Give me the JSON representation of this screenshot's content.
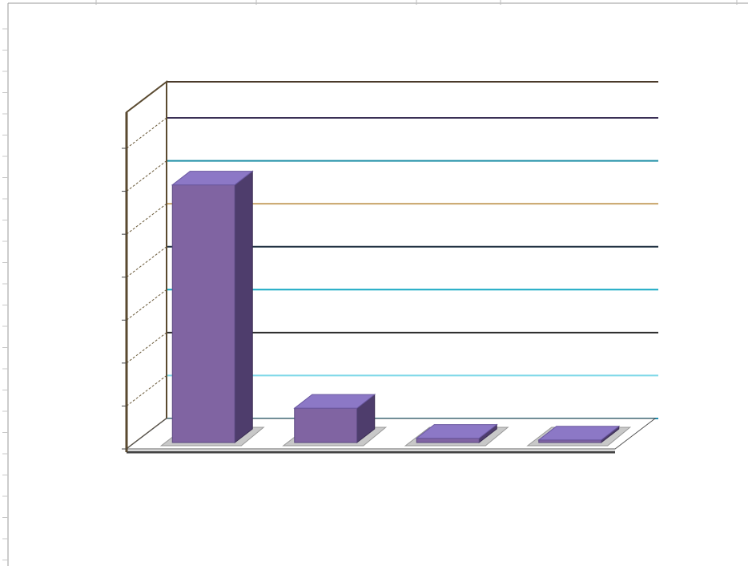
{
  "chart_data": {
    "type": "bar",
    "title": "",
    "xlabel": "",
    "ylabel": "",
    "categories": [
      "",
      "",
      "",
      ""
    ],
    "series": [
      {
        "values": [
          300,
          40,
          5,
          3
        ]
      }
    ],
    "y_ticks": [
      "",
      "",
      "",
      "",
      "",
      "",
      "",
      ""
    ],
    "ylim": [
      0,
      350
    ],
    "grid": true,
    "legend": "none",
    "three_d": true
  },
  "colors": {
    "bar_front": "#8064a2",
    "bar_top": "#8c78c6",
    "bar_side": "#4e3d6c",
    "gridlines": [
      "#3a2f55",
      "#1f8fa6",
      "#c8a46a",
      "#1f3040",
      "#19a9c4",
      "#2a2a2a",
      "#7ed8e8",
      "#1a8db0"
    ],
    "background": "#ffffff"
  }
}
